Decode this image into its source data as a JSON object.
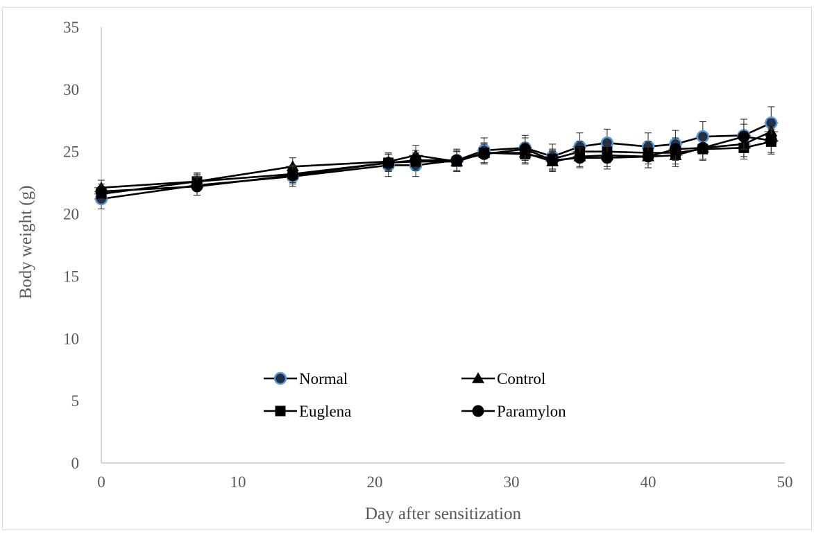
{
  "chart_data": {
    "type": "line",
    "title": "",
    "xlabel": "Day after sensitization",
    "ylabel": "Body weight (g)",
    "xlim": [
      0,
      50
    ],
    "ylim": [
      0,
      35
    ],
    "xticks": [
      0,
      10,
      20,
      30,
      40,
      50
    ],
    "yticks": [
      0,
      5,
      10,
      15,
      20,
      25,
      30,
      35
    ],
    "grid": false,
    "legend_position": "inside-bottom-center",
    "x": [
      0,
      7,
      14,
      21,
      23,
      26,
      28,
      31,
      33,
      35,
      37,
      40,
      42,
      44,
      47,
      49
    ],
    "series": [
      {
        "name": "Normal",
        "marker": "circle-blue-edge",
        "values": [
          21.2,
          22.3,
          23.0,
          23.9,
          23.9,
          24.3,
          25.1,
          25.3,
          24.6,
          25.4,
          25.7,
          25.4,
          25.6,
          26.2,
          26.3,
          27.3
        ],
        "error": [
          0.8,
          0.8,
          0.8,
          0.9,
          0.9,
          0.9,
          1.0,
          1.0,
          1.0,
          1.1,
          1.1,
          1.1,
          1.1,
          1.2,
          1.3,
          1.3
        ]
      },
      {
        "name": "Control",
        "marker": "triangle",
        "values": [
          22.1,
          22.6,
          23.8,
          24.2,
          24.7,
          24.2,
          24.9,
          24.9,
          24.2,
          24.6,
          24.7,
          24.6,
          24.7,
          25.3,
          25.6,
          26.6
        ],
        "error": [
          0.6,
          0.7,
          0.7,
          0.7,
          0.8,
          0.8,
          0.8,
          0.8,
          0.8,
          0.8,
          0.9,
          0.9,
          0.9,
          0.9,
          1.0,
          1.0
        ]
      },
      {
        "name": "Euglena",
        "marker": "square",
        "values": [
          21.6,
          22.6,
          23.2,
          24.1,
          24.2,
          24.2,
          24.9,
          24.8,
          24.4,
          25.0,
          25.0,
          24.9,
          24.9,
          25.2,
          25.3,
          25.8
        ],
        "error": [
          0.6,
          0.6,
          0.7,
          0.7,
          0.7,
          0.8,
          0.8,
          0.8,
          0.8,
          0.8,
          0.9,
          0.9,
          0.9,
          0.9,
          0.9,
          1.0
        ]
      },
      {
        "name": "Paramylon",
        "marker": "circle",
        "values": [
          21.8,
          22.2,
          23.1,
          24.1,
          24.3,
          24.3,
          24.8,
          25.2,
          24.3,
          24.5,
          24.5,
          24.6,
          25.2,
          25.3,
          26.2,
          25.9
        ],
        "error": [
          0.6,
          0.7,
          0.7,
          0.7,
          0.8,
          0.8,
          0.8,
          0.9,
          0.8,
          0.8,
          0.9,
          0.9,
          0.9,
          0.9,
          1.0,
          1.0
        ]
      }
    ]
  },
  "colors": {
    "line": "#000000",
    "axis": "#bfbfbf",
    "text": "#595959",
    "normal_marker_edge": "#5b9bd5"
  }
}
